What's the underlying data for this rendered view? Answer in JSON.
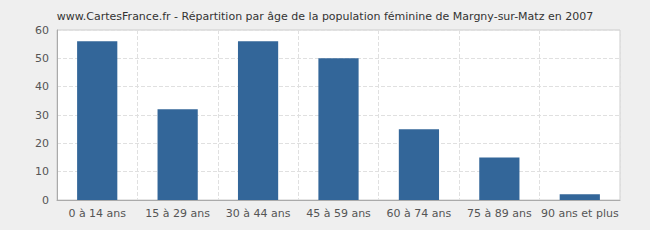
{
  "chart_data": {
    "type": "bar",
    "title": "www.CartesFrance.fr - Répartition par âge de la population féminine de Margny-sur-Matz en 2007",
    "categories": [
      "0 à 14 ans",
      "15 à 29 ans",
      "30 à 44 ans",
      "45 à 59 ans",
      "60 à 74 ans",
      "75 à 89 ans",
      "90 ans et plus"
    ],
    "values": [
      56,
      32,
      56,
      50,
      25,
      15,
      2
    ],
    "color": "#336699",
    "ylim": [
      0,
      60
    ],
    "yticks": [
      0,
      10,
      20,
      30,
      40,
      50,
      60
    ],
    "grid": true
  }
}
